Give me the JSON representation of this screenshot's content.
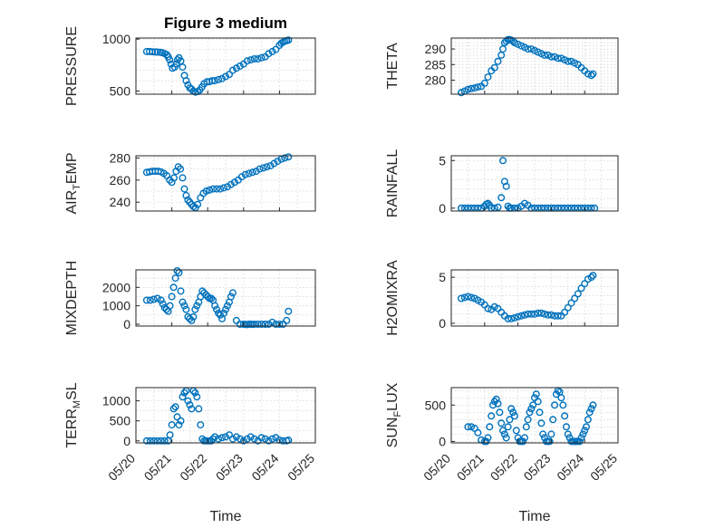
{
  "colors": {
    "marker": "#0072BD",
    "axis": "#262626",
    "grid": "#c8c8c8"
  },
  "chart_data": [
    {
      "type": "scatter",
      "title": "Figure 3 medium",
      "ylabel": "PRESSURE",
      "ylim": [
        470,
        1010
      ],
      "yticks": [
        500,
        1000
      ],
      "ytick_labels": [
        "500",
        "1000"
      ],
      "minor": 100,
      "xlim": [
        0,
        5
      ],
      "grid": true,
      "x": [
        0.3,
        0.38,
        0.46,
        0.54,
        0.6,
        0.68,
        0.74,
        0.8,
        0.86,
        0.9,
        0.94,
        0.98,
        1.02,
        1.08,
        1.12,
        1.16,
        1.2,
        1.25,
        1.3,
        1.35,
        1.4,
        1.45,
        1.5,
        1.55,
        1.6,
        1.66,
        1.72,
        1.78,
        1.84,
        1.9,
        1.98,
        2.05,
        2.12,
        2.2,
        2.3,
        2.4,
        2.5,
        2.6,
        2.7,
        2.8,
        2.9,
        3.0,
        3.1,
        3.2,
        3.3,
        3.4,
        3.5,
        3.6,
        3.7,
        3.8,
        3.9,
        4.0,
        4.05,
        4.1,
        4.15,
        4.2,
        4.25
      ],
      "y": [
        880,
        880,
        878,
        876,
        875,
        872,
        868,
        860,
        850,
        830,
        800,
        760,
        720,
        730,
        760,
        800,
        820,
        790,
        730,
        650,
        600,
        560,
        530,
        520,
        500,
        490,
        495,
        510,
        540,
        570,
        590,
        590,
        600,
        600,
        610,
        620,
        640,
        660,
        700,
        720,
        740,
        760,
        790,
        800,
        810,
        810,
        820,
        830,
        860,
        880,
        900,
        940,
        960,
        970,
        980,
        985,
        990
      ]
    },
    {
      "type": "scatter",
      "ylabel": "THETA",
      "ylim": [
        275.5,
        293.5
      ],
      "yticks": [
        280,
        285,
        290
      ],
      "ytick_labels": [
        "280",
        "285",
        "290"
      ],
      "minor": 1,
      "xlim": [
        0,
        5
      ],
      "grid": true,
      "x": [
        0.3,
        0.4,
        0.5,
        0.6,
        0.7,
        0.8,
        0.9,
        1.0,
        1.1,
        1.2,
        1.3,
        1.4,
        1.5,
        1.55,
        1.6,
        1.65,
        1.7,
        1.75,
        1.8,
        1.85,
        1.9,
        2.0,
        2.1,
        2.2,
        2.3,
        2.4,
        2.5,
        2.6,
        2.7,
        2.8,
        2.9,
        3.0,
        3.1,
        3.2,
        3.3,
        3.4,
        3.5,
        3.6,
        3.7,
        3.8,
        3.9,
        4.0,
        4.1,
        4.2,
        4.25
      ],
      "y": [
        276,
        276.5,
        277,
        277.3,
        277.5,
        277.8,
        278,
        279,
        281,
        283,
        284,
        286,
        288,
        290,
        292,
        292.5,
        293,
        293,
        292.8,
        292.5,
        292,
        291.5,
        291,
        290.5,
        290,
        290,
        289.5,
        289,
        288.5,
        288,
        288,
        287.5,
        287.5,
        287,
        287,
        286.5,
        286,
        286,
        285.5,
        285,
        284,
        283,
        282,
        281.5,
        282
      ]
    },
    {
      "type": "scatter",
      "ylabel": "AIR_TEMP",
      "ylim": [
        232,
        282
      ],
      "yticks": [
        240,
        260,
        280
      ],
      "ytick_labels": [
        "240",
        "260",
        "280"
      ],
      "minor": 10,
      "xlim": [
        0,
        5
      ],
      "grid": true,
      "x": [
        0.3,
        0.38,
        0.46,
        0.54,
        0.62,
        0.7,
        0.78,
        0.86,
        0.94,
        1.0,
        1.06,
        1.12,
        1.18,
        1.24,
        1.3,
        1.35,
        1.4,
        1.45,
        1.5,
        1.55,
        1.6,
        1.66,
        1.72,
        1.8,
        1.88,
        1.96,
        2.05,
        2.15,
        2.25,
        2.35,
        2.45,
        2.55,
        2.65,
        2.75,
        2.85,
        2.95,
        3.05,
        3.15,
        3.25,
        3.35,
        3.45,
        3.55,
        3.65,
        3.75,
        3.85,
        3.95,
        4.05,
        4.15,
        4.25
      ],
      "y": [
        267,
        267.5,
        268,
        268,
        268,
        267.5,
        266,
        264,
        260,
        258,
        262,
        268,
        272,
        270,
        262,
        252,
        246,
        242,
        240,
        238,
        236,
        235,
        238,
        244,
        248,
        250,
        251,
        252,
        252,
        252,
        253,
        254,
        256,
        258,
        260,
        263,
        265,
        266,
        267,
        268,
        270,
        271,
        272,
        273,
        275,
        277,
        279,
        280,
        281
      ]
    },
    {
      "type": "scatter",
      "ylabel": "RAINFALL",
      "ylim": [
        -0.3,
        5.5
      ],
      "yticks": [
        0,
        5
      ],
      "ytick_labels": [
        "0",
        "5"
      ],
      "minor": 1,
      "xlim": [
        0,
        5
      ],
      "grid": true,
      "x": [
        0.3,
        0.4,
        0.5,
        0.6,
        0.7,
        0.8,
        0.9,
        1.0,
        1.05,
        1.1,
        1.15,
        1.2,
        1.3,
        1.4,
        1.5,
        1.55,
        1.6,
        1.65,
        1.7,
        1.75,
        1.8,
        1.9,
        2.0,
        2.1,
        2.2,
        2.3,
        2.4,
        2.5,
        2.6,
        2.7,
        2.8,
        2.9,
        3.0,
        3.1,
        3.2,
        3.3,
        3.4,
        3.5,
        3.6,
        3.7,
        3.8,
        3.9,
        4.0,
        4.1,
        4.2,
        4.3
      ],
      "y": [
        0,
        0,
        0,
        0,
        0,
        0,
        0,
        0.2,
        0.4,
        0.5,
        0.3,
        0,
        0,
        0.1,
        1.1,
        5.0,
        2.8,
        2.3,
        0.2,
        0,
        0,
        0,
        0,
        0.2,
        0.5,
        0.3,
        0,
        0,
        0,
        0,
        0,
        0,
        0,
        0,
        0,
        0,
        0,
        0,
        0,
        0,
        0,
        0,
        0,
        0,
        0,
        0
      ]
    },
    {
      "type": "scatter",
      "ylabel": "MIXDEPTH",
      "ylim": [
        -100,
        2950
      ],
      "yticks": [
        0,
        1000,
        2000
      ],
      "ytick_labels": [
        "0",
        "1000",
        "2000"
      ],
      "minor": 500,
      "xlim": [
        0,
        5
      ],
      "grid": true,
      "x": [
        0.3,
        0.4,
        0.5,
        0.6,
        0.7,
        0.75,
        0.8,
        0.85,
        0.9,
        0.95,
        1.0,
        1.05,
        1.1,
        1.15,
        1.2,
        1.25,
        1.3,
        1.35,
        1.4,
        1.45,
        1.5,
        1.55,
        1.6,
        1.65,
        1.7,
        1.75,
        1.8,
        1.85,
        1.9,
        1.95,
        2.0,
        2.05,
        2.1,
        2.15,
        2.2,
        2.25,
        2.3,
        2.35,
        2.4,
        2.45,
        2.5,
        2.55,
        2.6,
        2.65,
        2.7,
        2.8,
        2.9,
        3.0,
        3.05,
        3.1,
        3.15,
        3.2,
        3.25,
        3.3,
        3.4,
        3.5,
        3.6,
        3.7,
        3.8,
        3.9,
        4.0,
        4.1,
        4.2,
        4.25
      ],
      "y": [
        1300,
        1300,
        1350,
        1400,
        1300,
        1100,
        900,
        800,
        700,
        1000,
        1500,
        2000,
        2500,
        2900,
        2800,
        1800,
        1200,
        1000,
        800,
        400,
        300,
        200,
        400,
        800,
        1000,
        1200,
        1500,
        1800,
        1700,
        1600,
        1500,
        1400,
        1400,
        1300,
        1000,
        800,
        600,
        500,
        300,
        600,
        800,
        1000,
        1200,
        1500,
        1700,
        200,
        0,
        0,
        -10,
        -20,
        0,
        0,
        -10,
        0,
        0,
        0,
        0,
        0,
        100,
        0,
        0,
        0,
        200,
        700
      ]
    },
    {
      "type": "scatter",
      "ylabel": "H2OMIXRA",
      "ylim": [
        -0.3,
        5.8
      ],
      "yticks": [
        0,
        5
      ],
      "ytick_labels": [
        "0",
        "5"
      ],
      "minor": 1,
      "xlim": [
        0,
        5
      ],
      "grid": true,
      "x": [
        0.3,
        0.4,
        0.5,
        0.6,
        0.7,
        0.8,
        0.9,
        1.0,
        1.1,
        1.2,
        1.3,
        1.4,
        1.5,
        1.6,
        1.7,
        1.8,
        1.9,
        2.0,
        2.1,
        2.2,
        2.3,
        2.4,
        2.5,
        2.6,
        2.7,
        2.8,
        2.9,
        3.0,
        3.1,
        3.2,
        3.3,
        3.4,
        3.5,
        3.6,
        3.7,
        3.8,
        3.9,
        4.0,
        4.1,
        4.2,
        4.25
      ],
      "y": [
        2.7,
        2.8,
        2.9,
        2.8,
        2.7,
        2.5,
        2.3,
        2.0,
        1.6,
        1.5,
        1.8,
        1.6,
        1.2,
        0.8,
        0.5,
        0.5,
        0.6,
        0.7,
        0.8,
        0.9,
        1.0,
        1.0,
        1.0,
        1.1,
        1.1,
        1.0,
        0.9,
        0.9,
        0.8,
        0.8,
        0.8,
        1.2,
        1.7,
        2.2,
        2.7,
        3.2,
        3.8,
        4.3,
        4.8,
        5.0,
        5.2
      ]
    },
    {
      "type": "scatter",
      "ylabel": "TERR_MSL",
      "xlabel": "Time",
      "ylim": [
        -50,
        1330
      ],
      "yticks": [
        0,
        500,
        1000
      ],
      "ytick_labels": [
        "0",
        "500",
        "1000"
      ],
      "minor": 250,
      "xlim": [
        0,
        5
      ],
      "xticks": [
        0,
        1,
        2,
        3,
        4,
        5
      ],
      "xtick_labels": [
        "05/20",
        "05/21",
        "05/22",
        "05/23",
        "05/24",
        "05/25"
      ],
      "grid": true,
      "x": [
        0.3,
        0.4,
        0.5,
        0.6,
        0.7,
        0.8,
        0.9,
        0.95,
        1.0,
        1.05,
        1.1,
        1.15,
        1.2,
        1.25,
        1.3,
        1.35,
        1.4,
        1.45,
        1.5,
        1.55,
        1.6,
        1.65,
        1.7,
        1.75,
        1.8,
        1.85,
        1.9,
        1.95,
        2.0,
        2.05,
        2.1,
        2.15,
        2.2,
        2.3,
        2.4,
        2.5,
        2.6,
        2.7,
        2.8,
        2.9,
        3.0,
        3.1,
        3.2,
        3.3,
        3.4,
        3.5,
        3.6,
        3.7,
        3.8,
        3.9,
        4.0,
        4.1,
        4.2,
        4.25
      ],
      "y": [
        0,
        0,
        0,
        0,
        0,
        0,
        0,
        150,
        400,
        800,
        850,
        600,
        400,
        500,
        1100,
        1200,
        1250,
        1000,
        900,
        800,
        1250,
        1200,
        1100,
        800,
        400,
        50,
        0,
        0,
        0,
        0,
        0,
        50,
        100,
        50,
        80,
        100,
        150,
        50,
        100,
        50,
        0,
        50,
        100,
        50,
        0,
        80,
        50,
        0,
        50,
        80,
        20,
        0,
        0,
        20
      ]
    },
    {
      "type": "scatter",
      "ylabel": "SUN_FLUX",
      "xlabel": "Time",
      "ylim": [
        -20,
        740
      ],
      "yticks": [
        0,
        500
      ],
      "ytick_labels": [
        "0",
        "500"
      ],
      "minor": 100,
      "xlim": [
        0,
        5
      ],
      "xticks": [
        0,
        1,
        2,
        3,
        4,
        5
      ],
      "xtick_labels": [
        "05/20",
        "05/21",
        "05/22",
        "05/23",
        "05/24",
        "05/25"
      ],
      "grid": true,
      "x": [
        0.5,
        0.6,
        0.7,
        0.8,
        0.9,
        1.0,
        1.05,
        1.1,
        1.15,
        1.2,
        1.25,
        1.3,
        1.35,
        1.4,
        1.45,
        1.5,
        1.55,
        1.6,
        1.65,
        1.7,
        1.75,
        1.8,
        1.85,
        1.9,
        1.95,
        2.0,
        2.05,
        2.1,
        2.15,
        2.2,
        2.25,
        2.3,
        2.35,
        2.4,
        2.45,
        2.5,
        2.55,
        2.6,
        2.65,
        2.7,
        2.75,
        2.8,
        2.85,
        2.9,
        2.95,
        3.0,
        3.05,
        3.1,
        3.15,
        3.2,
        3.25,
        3.3,
        3.35,
        3.4,
        3.45,
        3.5,
        3.55,
        3.6,
        3.65,
        3.7,
        3.75,
        3.8,
        3.85,
        3.9,
        3.95,
        4.0,
        4.05,
        4.1,
        4.15,
        4.2,
        4.25
      ],
      "y": [
        200,
        200,
        180,
        120,
        20,
        0,
        0,
        50,
        200,
        350,
        500,
        550,
        580,
        520,
        400,
        250,
        150,
        100,
        50,
        200,
        300,
        450,
        400,
        350,
        150,
        50,
        0,
        0,
        0,
        50,
        200,
        300,
        400,
        450,
        500,
        600,
        650,
        550,
        400,
        250,
        100,
        50,
        0,
        0,
        0,
        100,
        300,
        500,
        650,
        700,
        680,
        600,
        500,
        350,
        200,
        100,
        50,
        0,
        0,
        0,
        0,
        0,
        0,
        50,
        100,
        150,
        200,
        300,
        400,
        450,
        500
      ]
    }
  ]
}
